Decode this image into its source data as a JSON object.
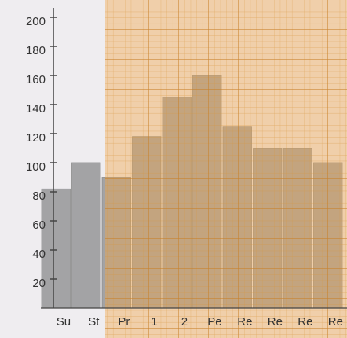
{
  "chart_data": {
    "type": "bar",
    "categories": [
      "Su",
      "St",
      "Pr",
      "1",
      "2",
      "Pe",
      "Re",
      "Re",
      "Re",
      "Re"
    ],
    "values": [
      82,
      100,
      90,
      118,
      145,
      160,
      125,
      110,
      110,
      100
    ],
    "color": "#a3a3a5",
    "ylim": [
      0,
      200
    ],
    "yticks": [
      20,
      40,
      60,
      80,
      100,
      120,
      140,
      160,
      180,
      200
    ]
  }
}
